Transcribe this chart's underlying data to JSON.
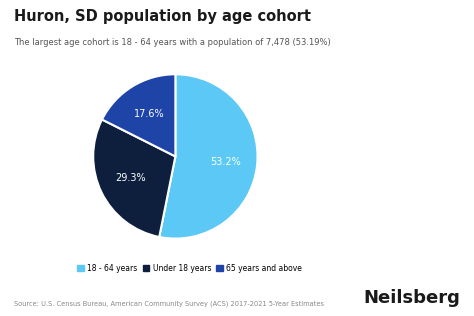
{
  "title": "Huron, SD population by age cohort",
  "subtitle": "The largest age cohort is 18 - 64 years with a population of 7,478 (53.19%)",
  "slices": [
    53.2,
    29.3,
    17.6
  ],
  "labels": [
    "18 - 64 years",
    "Under 18 years",
    "65 years and above"
  ],
  "colors": [
    "#5BC8F5",
    "#0D1F3C",
    "#1E44A8"
  ],
  "pct_labels": [
    "53.2%",
    "29.3%",
    "17.6%"
  ],
  "source": "Source: U.S. Census Bureau, American Community Survey (ACS) 2017-2021 5-Year Estimates",
  "brand": "Neilsberg",
  "background_color": "#ffffff",
  "legend_colors": [
    "#5BC8F5",
    "#0D1F3C",
    "#1E44A8"
  ],
  "startangle": 90
}
